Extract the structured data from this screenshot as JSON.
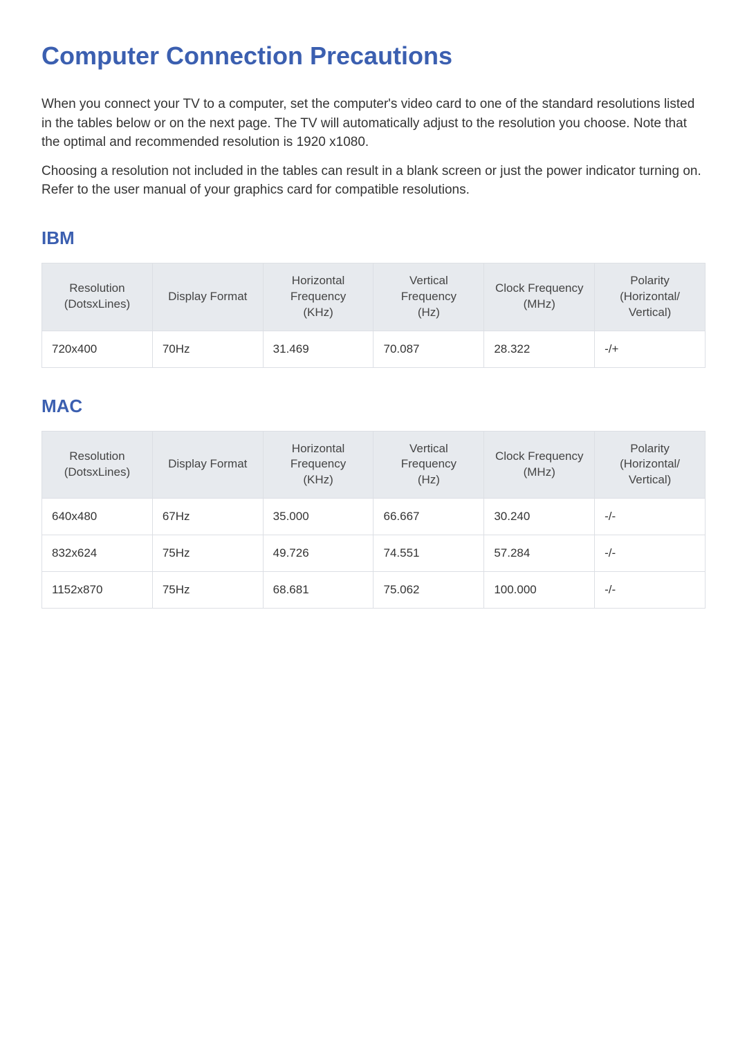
{
  "colors": {
    "heading": "#3b5fb0",
    "body_text": "#333333",
    "header_bg": "#e7eaee",
    "header_text": "#444444",
    "border": "#dcdfe4",
    "page_bg": "#ffffff"
  },
  "typography": {
    "title_fontsize": 36,
    "section_fontsize": 26,
    "body_fontsize": 19,
    "table_fontsize": 17
  },
  "title": "Computer Connection Precautions",
  "paragraphs": [
    "When you connect your TV to a computer, set the computer's video card to one of the standard resolutions listed in the tables below or on the next page. The TV will automatically adjust to the resolution you choose. Note that the optimal and recommended resolution is 1920 x1080.",
    "Choosing a resolution not included in the tables can result in a blank screen or just the power indicator turning on. Refer to the user manual of your graphics card for compatible resolutions."
  ],
  "sections": [
    {
      "heading": "IBM",
      "table": {
        "type": "table",
        "columns": [
          "Resolution\n(DotsxLines)",
          "Display Format",
          "Horizontal\nFrequency\n(KHz)",
          "Vertical\nFrequency\n(Hz)",
          "Clock Frequency\n(MHz)",
          "Polarity\n(Horizontal/\nVertical)"
        ],
        "rows": [
          [
            "720x400",
            "70Hz",
            "31.469",
            "70.087",
            "28.322",
            "-/+"
          ]
        ]
      }
    },
    {
      "heading": "MAC",
      "table": {
        "type": "table",
        "columns": [
          "Resolution\n(DotsxLines)",
          "Display Format",
          "Horizontal\nFrequency\n(KHz)",
          "Vertical\nFrequency\n(Hz)",
          "Clock Frequency\n(MHz)",
          "Polarity\n(Horizontal/\nVertical)"
        ],
        "rows": [
          [
            "640x480",
            "67Hz",
            "35.000",
            "66.667",
            "30.240",
            "-/-"
          ],
          [
            "832x624",
            "75Hz",
            "49.726",
            "74.551",
            "57.284",
            "-/-"
          ],
          [
            "1152x870",
            "75Hz",
            "68.681",
            "75.062",
            "100.000",
            "-/-"
          ]
        ]
      }
    }
  ]
}
